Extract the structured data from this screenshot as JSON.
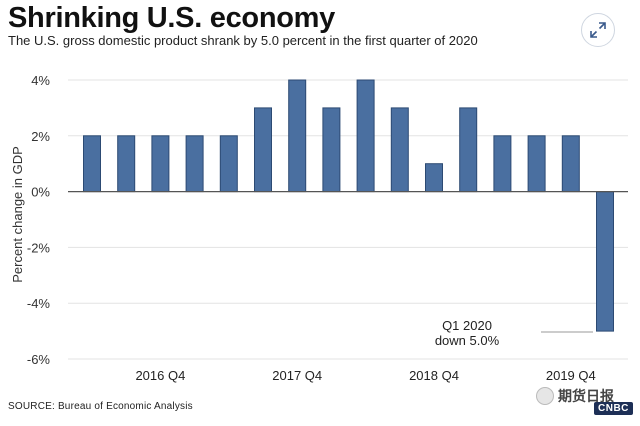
{
  "header": {
    "title": "Shrinking U.S. economy",
    "subtitle": "The U.S. gross domestic product shrank by 5.0 percent in the first quarter of 2020"
  },
  "footer": {
    "source": "SOURCE: Bureau of Economic Analysis",
    "watermark": "期货日报",
    "logo": "CNBC"
  },
  "icons": {
    "expand": "expand-arrows-icon"
  },
  "colors": {
    "bar": "#4a6fa0",
    "bar_edge": "#2c4a73",
    "grid": "#e3e3e3",
    "zero_line": "#555555"
  },
  "chart_data": {
    "type": "bar",
    "title": "Shrinking U.S. economy",
    "ylabel": "Percent change in GDP",
    "ylim": [
      -6,
      4
    ],
    "yticks": [
      4,
      2,
      0,
      -2,
      -4,
      -6
    ],
    "ytick_labels": [
      "4%",
      "2%",
      "0%",
      "-2%",
      "-4%",
      "-6%"
    ],
    "grid": true,
    "values": [
      2,
      2,
      2,
      2,
      2,
      3,
      4,
      3,
      4,
      3,
      1,
      3,
      2,
      2,
      2,
      -5
    ],
    "xtick_labels": [
      {
        "label": "2016 Q4",
        "index": 2
      },
      {
        "label": "2017 Q4",
        "index": 6
      },
      {
        "label": "2018 Q4",
        "index": 10
      },
      {
        "label": "2019 Q4",
        "index": 14
      }
    ],
    "annotation": {
      "line1": "Q1 2020",
      "line2": "down 5.0%",
      "index": 15
    }
  }
}
